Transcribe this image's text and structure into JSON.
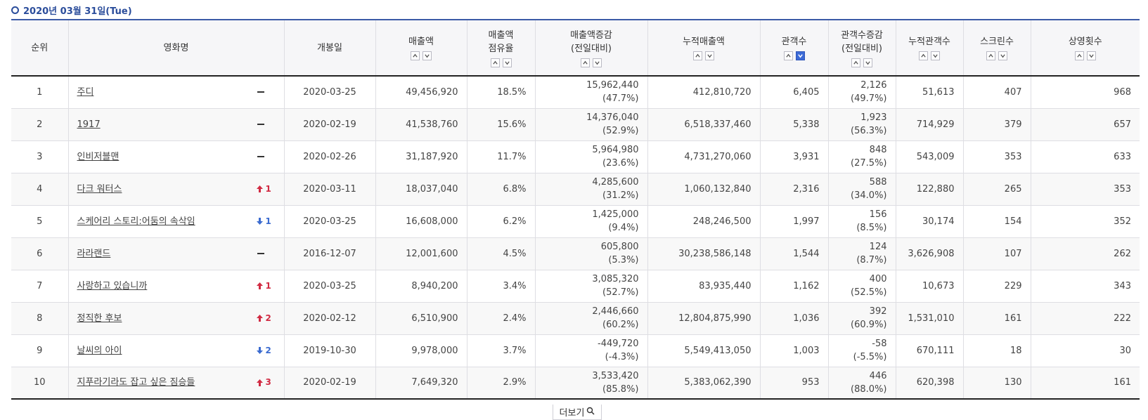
{
  "date_label": "2020년 03월 31일(Tue)",
  "headers": {
    "rank": "순위",
    "title": "영화명",
    "open_date": "개봉일",
    "sales": "매출액",
    "share_line1": "매출액",
    "share_line2": "점유율",
    "sales_change_line1": "매출액증감",
    "sales_change_line2": "(전일대비)",
    "cum_sales": "누적매출액",
    "audience": "관객수",
    "aud_change_line1": "관객수증감",
    "aud_change_line2": "(전일대비)",
    "cum_audience": "누적관객수",
    "screens": "스크린수",
    "showings": "상영횟수"
  },
  "rows": [
    {
      "rank": "1",
      "title": "주디",
      "change_dir": "none",
      "change_val": "",
      "open_date": "2020-03-25",
      "sales": "49,456,920",
      "share": "18.5%",
      "sales_change": "15,962,440",
      "sales_change_pct": "(47.7%)",
      "cum_sales": "412,810,720",
      "audience": "6,405",
      "aud_change": "2,126",
      "aud_change_pct": "(49.7%)",
      "cum_audience": "51,613",
      "screens": "407",
      "showings": "968"
    },
    {
      "rank": "2",
      "title": "1917",
      "change_dir": "none",
      "change_val": "",
      "open_date": "2020-02-19",
      "sales": "41,538,760",
      "share": "15.6%",
      "sales_change": "14,376,040",
      "sales_change_pct": "(52.9%)",
      "cum_sales": "6,518,337,460",
      "audience": "5,338",
      "aud_change": "1,923",
      "aud_change_pct": "(56.3%)",
      "cum_audience": "714,929",
      "screens": "379",
      "showings": "657"
    },
    {
      "rank": "3",
      "title": "인비저블맨",
      "change_dir": "none",
      "change_val": "",
      "open_date": "2020-02-26",
      "sales": "31,187,920",
      "share": "11.7%",
      "sales_change": "5,964,980",
      "sales_change_pct": "(23.6%)",
      "cum_sales": "4,731,270,060",
      "audience": "3,931",
      "aud_change": "848",
      "aud_change_pct": "(27.5%)",
      "cum_audience": "543,009",
      "screens": "353",
      "showings": "633"
    },
    {
      "rank": "4",
      "title": "다크 워터스",
      "change_dir": "up",
      "change_val": "1",
      "open_date": "2020-03-11",
      "sales": "18,037,040",
      "share": "6.8%",
      "sales_change": "4,285,600",
      "sales_change_pct": "(31.2%)",
      "cum_sales": "1,060,132,840",
      "audience": "2,316",
      "aud_change": "588",
      "aud_change_pct": "(34.0%)",
      "cum_audience": "122,880",
      "screens": "265",
      "showings": "353"
    },
    {
      "rank": "5",
      "title": "스케어리 스토리:어둠의 속삭임",
      "change_dir": "down",
      "change_val": "1",
      "open_date": "2020-03-25",
      "sales": "16,608,000",
      "share": "6.2%",
      "sales_change": "1,425,000",
      "sales_change_pct": "(9.4%)",
      "cum_sales": "248,246,500",
      "audience": "1,997",
      "aud_change": "156",
      "aud_change_pct": "(8.5%)",
      "cum_audience": "30,174",
      "screens": "154",
      "showings": "352"
    },
    {
      "rank": "6",
      "title": "라라랜드",
      "change_dir": "none",
      "change_val": "",
      "open_date": "2016-12-07",
      "sales": "12,001,600",
      "share": "4.5%",
      "sales_change": "605,800",
      "sales_change_pct": "(5.3%)",
      "cum_sales": "30,238,586,148",
      "audience": "1,544",
      "aud_change": "124",
      "aud_change_pct": "(8.7%)",
      "cum_audience": "3,626,908",
      "screens": "107",
      "showings": "262"
    },
    {
      "rank": "7",
      "title": "사랑하고 있습니까",
      "change_dir": "up",
      "change_val": "1",
      "open_date": "2020-03-25",
      "sales": "8,940,200",
      "share": "3.4%",
      "sales_change": "3,085,320",
      "sales_change_pct": "(52.7%)",
      "cum_sales": "83,935,440",
      "audience": "1,162",
      "aud_change": "400",
      "aud_change_pct": "(52.5%)",
      "cum_audience": "10,673",
      "screens": "229",
      "showings": "343"
    },
    {
      "rank": "8",
      "title": "정직한 후보",
      "change_dir": "up",
      "change_val": "2",
      "open_date": "2020-02-12",
      "sales": "6,510,900",
      "share": "2.4%",
      "sales_change": "2,446,660",
      "sales_change_pct": "(60.2%)",
      "cum_sales": "12,804,875,990",
      "audience": "1,036",
      "aud_change": "392",
      "aud_change_pct": "(60.9%)",
      "cum_audience": "1,531,010",
      "screens": "161",
      "showings": "222"
    },
    {
      "rank": "9",
      "title": "날씨의 아이",
      "change_dir": "down",
      "change_val": "2",
      "open_date": "2019-10-30",
      "sales": "9,978,000",
      "share": "3.7%",
      "sales_change": "-449,720",
      "sales_change_pct": "(-4.3%)",
      "cum_sales": "5,549,413,050",
      "audience": "1,003",
      "aud_change": "-58",
      "aud_change_pct": "(-5.5%)",
      "cum_audience": "670,111",
      "screens": "18",
      "showings": "30"
    },
    {
      "rank": "10",
      "title": "지푸라기라도 잡고 싶은 짐승들",
      "change_dir": "up",
      "change_val": "3",
      "open_date": "2020-02-19",
      "sales": "7,649,320",
      "share": "2.9%",
      "sales_change": "3,533,420",
      "sales_change_pct": "(85.8%)",
      "cum_sales": "5,383,062,390",
      "audience": "953",
      "aud_change": "446",
      "aud_change_pct": "(88.0%)",
      "cum_audience": "620,398",
      "screens": "130",
      "showings": "161"
    }
  ],
  "more_label": "더보기",
  "colors": {
    "accent": "#2b4d9b",
    "up": "#d12b43",
    "down": "#3b6bd0",
    "active_sort": "#3c6ad6"
  },
  "icons": {
    "header_bullet": "circle-bullet-icon",
    "sort_asc": "caret-up-icon",
    "sort_desc": "caret-down-icon",
    "rank_up": "arrow-up-icon",
    "rank_down": "arrow-down-icon",
    "rank_same": "dash-icon",
    "more": "search-icon"
  },
  "active_sort": "audience-desc"
}
